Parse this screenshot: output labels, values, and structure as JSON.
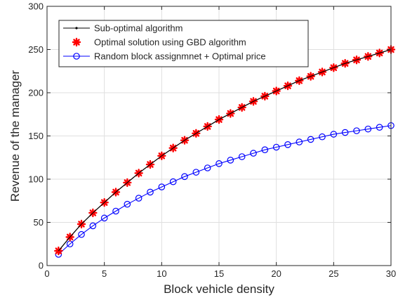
{
  "chart_data": {
    "type": "line",
    "title": "",
    "xlabel": "Block vehicle density",
    "ylabel": "Revenue of the manager",
    "xlim": [
      0,
      30
    ],
    "ylim": [
      0,
      300
    ],
    "xticks": [
      0,
      5,
      10,
      15,
      20,
      25,
      30
    ],
    "yticks": [
      0,
      50,
      100,
      150,
      200,
      250,
      300
    ],
    "grid": true,
    "legend_position": "top-left",
    "x": [
      1,
      2,
      3,
      4,
      5,
      6,
      7,
      8,
      9,
      10,
      11,
      12,
      13,
      14,
      15,
      16,
      17,
      18,
      19,
      20,
      21,
      22,
      23,
      24,
      25,
      26,
      27,
      28,
      29,
      30
    ],
    "series": [
      {
        "name": "Sub-optimal algorithm",
        "color": "#000000",
        "marker": "dot",
        "values": [
          17,
          33,
          48,
          61,
          73,
          85,
          96,
          107,
          117,
          127,
          136,
          145,
          153,
          161,
          169,
          176,
          183,
          190,
          196,
          202,
          208,
          214,
          219,
          224,
          229,
          234,
          238,
          242,
          246,
          250
        ]
      },
      {
        "name": "Optimal solution using GBD algorithm",
        "color": "#ff0000",
        "marker": "asterisk",
        "values": [
          17,
          33,
          48,
          61,
          73,
          85,
          96,
          107,
          117,
          127,
          136,
          145,
          153,
          161,
          169,
          176,
          183,
          190,
          196,
          202,
          208,
          214,
          219,
          224,
          229,
          234,
          238,
          242,
          246,
          250
        ]
      },
      {
        "name": "Random block assignmnet + Optimal price",
        "color": "#0000ff",
        "marker": "circle",
        "values": [
          13,
          25,
          36,
          46,
          55,
          63,
          71,
          78,
          85,
          91,
          97,
          103,
          108,
          113,
          118,
          122,
          126,
          130,
          134,
          137,
          140,
          143,
          146,
          149,
          152,
          154,
          156,
          158,
          160,
          162
        ]
      }
    ]
  }
}
